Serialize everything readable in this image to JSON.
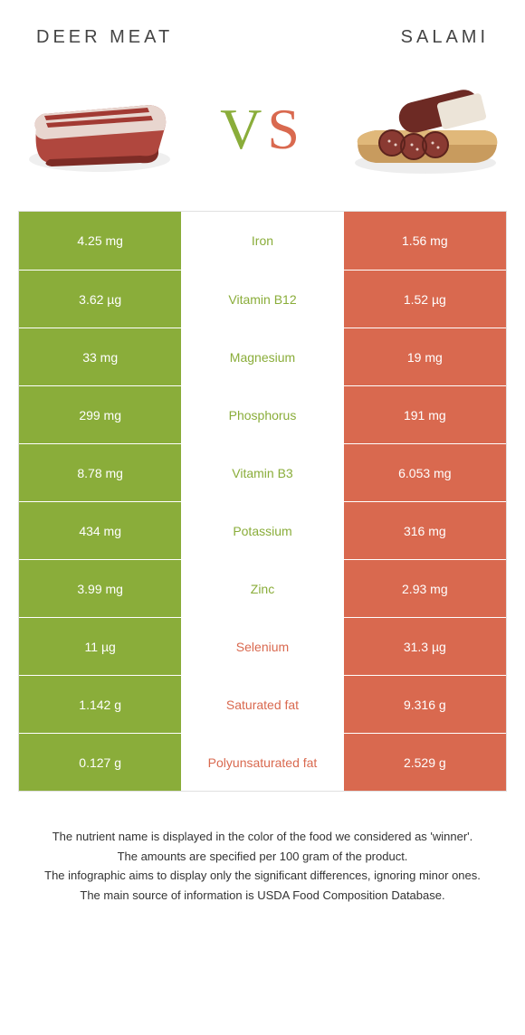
{
  "header": {
    "left_title": "Deer meat",
    "right_title": "Salami"
  },
  "vs": {
    "v": "V",
    "s": "S"
  },
  "colors": {
    "green": "#8aad3a",
    "red": "#d9694f",
    "border": "#e0e0e0",
    "text": "#333333",
    "white": "#ffffff"
  },
  "rows": [
    {
      "left": "4.25 mg",
      "nutrient": "Iron",
      "right": "1.56 mg",
      "winner": "green"
    },
    {
      "left": "3.62 µg",
      "nutrient": "Vitamin B12",
      "right": "1.52 µg",
      "winner": "green"
    },
    {
      "left": "33 mg",
      "nutrient": "Magnesium",
      "right": "19 mg",
      "winner": "green"
    },
    {
      "left": "299 mg",
      "nutrient": "Phosphorus",
      "right": "191 mg",
      "winner": "green"
    },
    {
      "left": "8.78 mg",
      "nutrient": "Vitamin B3",
      "right": "6.053 mg",
      "winner": "green"
    },
    {
      "left": "434 mg",
      "nutrient": "Potassium",
      "right": "316 mg",
      "winner": "green"
    },
    {
      "left": "3.99 mg",
      "nutrient": "Zinc",
      "right": "2.93 mg",
      "winner": "green"
    },
    {
      "left": "11 µg",
      "nutrient": "Selenium",
      "right": "31.3 µg",
      "winner": "red"
    },
    {
      "left": "1.142 g",
      "nutrient": "Saturated fat",
      "right": "9.316 g",
      "winner": "red"
    },
    {
      "left": "0.127 g",
      "nutrient": "Polyunsaturated fat",
      "right": "2.529 g",
      "winner": "red"
    }
  ],
  "footnote": {
    "line1": "The nutrient name is displayed in the color of the food we considered as 'winner'.",
    "line2": "The amounts are specified per 100 gram of the product.",
    "line3": "The infographic aims to display only the significant differences, ignoring minor ones.",
    "line4": "The main source of information is USDA Food Composition Database."
  }
}
